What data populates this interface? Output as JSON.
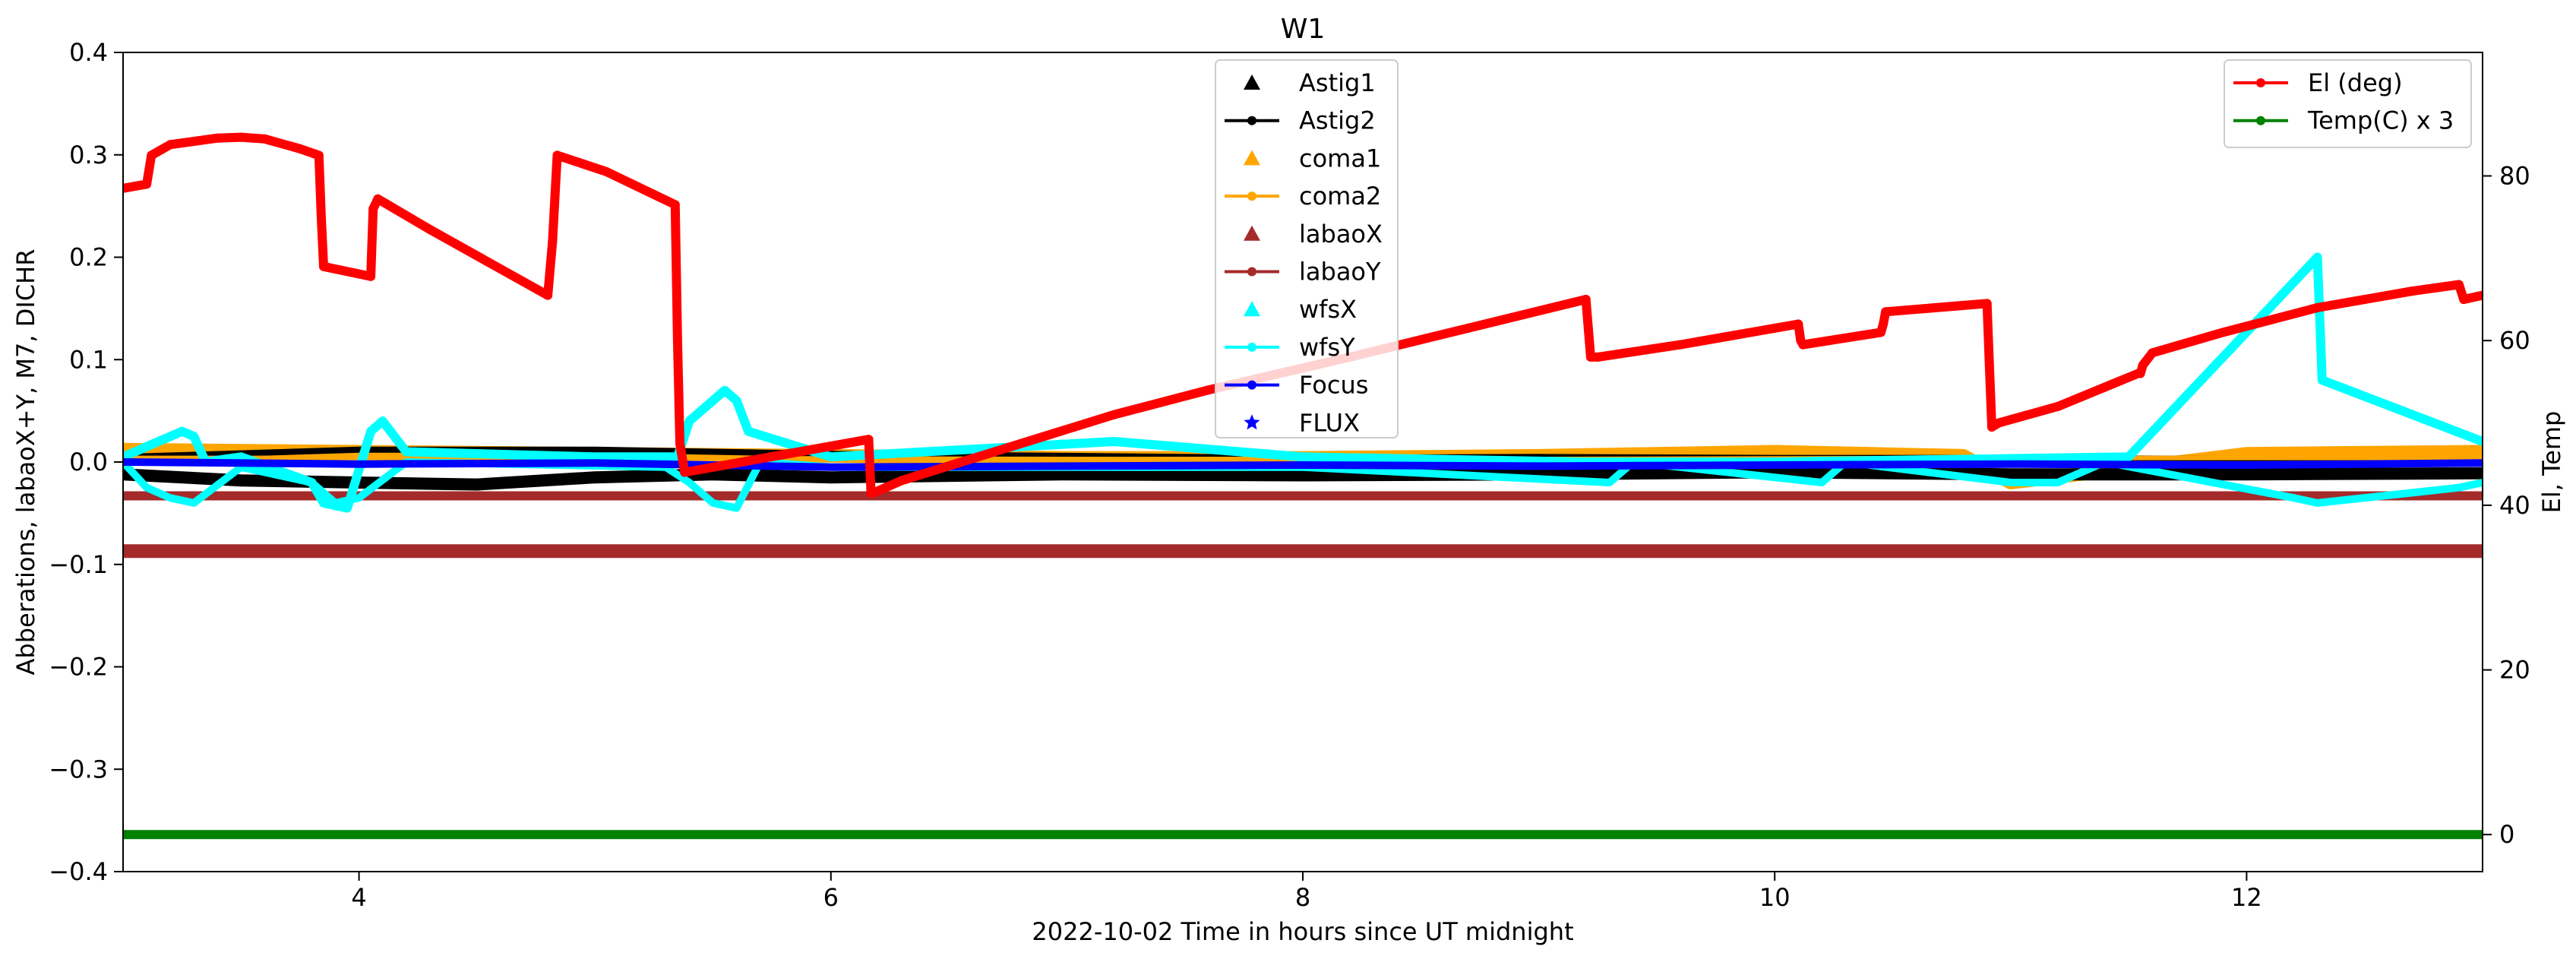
{
  "chart_data": {
    "type": "line",
    "title": "W1",
    "xlabel": "2022-10-02  Time in hours since UT midnight",
    "ylabel_left": "Abberations, labaoX+Y, M7, DICHR",
    "ylabel_right": "El, Temp",
    "xlim": [
      3.0,
      13.0
    ],
    "ylim_left": [
      -0.4,
      0.4
    ],
    "ylim_right": [
      -4.5,
      95.0
    ],
    "x_ticks": [
      4,
      6,
      8,
      10,
      12
    ],
    "y_left_ticks": [
      0.4,
      0.3,
      0.2,
      0.1,
      0.0,
      -0.1,
      -0.2,
      -0.3,
      -0.4
    ],
    "y_left_tick_labels": [
      "0.4",
      "0.3",
      "0.2",
      "0.1",
      "0.0",
      "−0.1",
      "−0.2",
      "−0.3",
      "−0.4"
    ],
    "y_right_ticks": [
      0,
      20,
      40,
      60,
      80
    ],
    "grid": false,
    "legend_left": {
      "placement": "top-center",
      "entries": [
        {
          "label": "Astig1",
          "color": "#000000",
          "marker": "triangle",
          "line": false
        },
        {
          "label": "Astig2",
          "color": "#000000",
          "marker": "dot",
          "line": true
        },
        {
          "label": "coma1",
          "color": "#ffa500",
          "marker": "triangle",
          "line": false
        },
        {
          "label": "coma2",
          "color": "#ffa500",
          "marker": "dot",
          "line": true
        },
        {
          "label": "labaoX",
          "color": "#a52a2a",
          "marker": "triangle",
          "line": false
        },
        {
          "label": "labaoY",
          "color": "#a52a2a",
          "marker": "dot",
          "line": true
        },
        {
          "label": "wfsX",
          "color": "#00ffff",
          "marker": "triangle",
          "line": false
        },
        {
          "label": "wfsY",
          "color": "#00ffff",
          "marker": "dot",
          "line": true
        },
        {
          "label": "Focus",
          "color": "#0000ff",
          "marker": "dot",
          "line": true
        },
        {
          "label": "FLUX",
          "color": "#0000ff",
          "marker": "star",
          "line": false
        }
      ]
    },
    "legend_right": {
      "placement": "top-right",
      "entries": [
        {
          "label": "El (deg)",
          "color": "#ff0000",
          "marker": "dot",
          "line": true
        },
        {
          "label": "Temp(C) x 3",
          "color": "#008000",
          "marker": "dot",
          "line": true
        }
      ]
    },
    "series_right": [
      {
        "name": "El (deg)",
        "color": "#ff0000",
        "x": [
          3.0,
          3.1,
          3.12,
          3.2,
          3.4,
          3.5,
          3.6,
          3.75,
          3.83,
          3.84,
          3.85,
          4.05,
          4.06,
          4.08,
          4.3,
          4.55,
          4.8,
          4.82,
          4.84,
          5.05,
          5.34,
          5.35,
          5.36,
          5.38,
          6.16,
          6.17,
          6.18,
          6.3,
          7.2,
          7.6,
          8.2,
          8.7,
          9.2,
          9.21,
          9.22,
          9.25,
          9.6,
          10.0,
          10.1,
          10.11,
          10.12,
          10.45,
          10.46,
          10.47,
          10.9,
          10.91,
          10.92,
          10.95,
          11.2,
          11.54,
          11.55,
          11.56,
          11.6,
          11.9,
          12.3,
          12.7,
          12.9,
          12.92,
          13.0
        ],
        "values": [
          78.5,
          79.0,
          82.5,
          83.8,
          84.6,
          84.7,
          84.5,
          83.3,
          82.5,
          75.0,
          69.0,
          67.8,
          76.0,
          77.2,
          73.5,
          69.5,
          65.5,
          72.0,
          82.5,
          80.5,
          76.5,
          60.0,
          47.5,
          44.0,
          48.0,
          41.5,
          41.5,
          43.0,
          51.0,
          54.0,
          58.0,
          61.5,
          65.0,
          61.5,
          58.0,
          58.0,
          59.5,
          61.5,
          62.0,
          60.0,
          59.5,
          61.0,
          62.0,
          63.5,
          64.5,
          57.0,
          49.5,
          50.0,
          52.0,
          56.0,
          56.0,
          57.0,
          58.5,
          61.0,
          64.0,
          66.0,
          66.8,
          65.0,
          65.5
        ]
      },
      {
        "name": "Temp(C) x 3",
        "color": "#008000",
        "x": [
          3.0,
          13.0
        ],
        "values": [
          0.0,
          0.0
        ]
      }
    ],
    "series_left": [
      {
        "name": "labaoX",
        "color": "#a52a2a",
        "x": [
          3.0,
          13.0
        ],
        "values": [
          -0.087,
          -0.087
        ]
      },
      {
        "name": "labaoY",
        "color": "#a52a2a",
        "x": [
          3.0,
          13.0
        ],
        "values": [
          -0.033,
          -0.033
        ]
      },
      {
        "name": "Astig1",
        "color": "#000000",
        "x": [
          3.0,
          3.5,
          4.0,
          4.5,
          5.0,
          5.5,
          6.0,
          7.0,
          8.0,
          9.0,
          10.0,
          11.0,
          12.0,
          13.0
        ],
        "values": [
          -0.012,
          -0.018,
          -0.02,
          -0.022,
          -0.015,
          -0.012,
          -0.015,
          -0.012,
          -0.013,
          -0.012,
          -0.01,
          -0.012,
          -0.012,
          -0.011
        ]
      },
      {
        "name": "Astig2",
        "color": "#000000",
        "x": [
          3.0,
          4.0,
          5.0,
          6.0,
          7.0,
          8.0,
          9.0,
          10.0,
          11.0,
          12.0,
          13.0
        ],
        "values": [
          0.005,
          0.012,
          0.012,
          0.008,
          0.006,
          0.004,
          0.005,
          0.004,
          0.004,
          0.003,
          0.002
        ]
      },
      {
        "name": "coma1",
        "color": "#ffa500",
        "x": [
          3.0,
          4.0,
          5.0,
          6.0,
          7.0,
          8.0,
          9.0,
          10.0,
          10.8,
          11.0,
          12.0,
          13.0
        ],
        "values": [
          0.012,
          0.01,
          0.008,
          0.006,
          0.004,
          0.004,
          0.006,
          0.01,
          0.006,
          -0.02,
          0.008,
          0.01
        ]
      },
      {
        "name": "coma2",
        "color": "#ffa500",
        "x": [
          3.0,
          5.0,
          7.0,
          9.0,
          11.0,
          13.0
        ],
        "values": [
          0.004,
          0.004,
          0.003,
          0.003,
          0.004,
          0.004
        ]
      },
      {
        "name": "wfsX",
        "color": "#00ffff",
        "x": [
          3.0,
          3.15,
          3.25,
          3.3,
          3.35,
          3.5,
          3.8,
          3.85,
          3.95,
          4.05,
          4.1,
          4.2,
          5.0,
          5.35,
          5.4,
          5.5,
          5.55,
          5.6,
          5.65,
          6.0,
          7.2,
          8.0,
          9.2,
          10.0,
          11.5,
          12.3,
          12.32,
          13.0
        ],
        "values": [
          0.005,
          0.02,
          0.03,
          0.025,
          0.0,
          0.005,
          -0.02,
          -0.04,
          -0.045,
          0.03,
          0.04,
          0.01,
          0.005,
          0.005,
          0.04,
          0.06,
          0.07,
          0.06,
          0.03,
          0.005,
          0.02,
          0.005,
          0.0,
          0.0,
          0.005,
          0.2,
          0.08,
          0.02
        ]
      },
      {
        "name": "wfsY",
        "color": "#00ffff",
        "x": [
          3.0,
          3.1,
          3.2,
          3.3,
          3.5,
          3.8,
          3.9,
          4.0,
          4.2,
          5.3,
          5.4,
          5.5,
          5.6,
          5.7,
          6.0,
          8.0,
          9.3,
          9.4,
          10.2,
          10.3,
          11.0,
          11.2,
          11.4,
          12.2,
          12.3,
          12.9,
          13.0
        ],
        "values": [
          0.0,
          -0.025,
          -0.035,
          -0.04,
          -0.005,
          -0.02,
          -0.04,
          -0.035,
          0.0,
          -0.005,
          -0.02,
          -0.04,
          -0.045,
          0.0,
          -0.005,
          -0.005,
          -0.02,
          0.0,
          -0.02,
          0.0,
          -0.02,
          -0.02,
          0.0,
          -0.035,
          -0.04,
          -0.025,
          -0.02
        ]
      },
      {
        "name": "Focus",
        "color": "#0000ff",
        "x": [
          3.0,
          4.0,
          5.0,
          6.0,
          7.0,
          8.0,
          9.0,
          10.0,
          11.0,
          12.0,
          13.0
        ],
        "values": [
          0.0,
          -0.002,
          -0.001,
          -0.005,
          -0.004,
          -0.003,
          -0.004,
          -0.003,
          -0.002,
          -0.003,
          -0.001
        ]
      }
    ]
  }
}
